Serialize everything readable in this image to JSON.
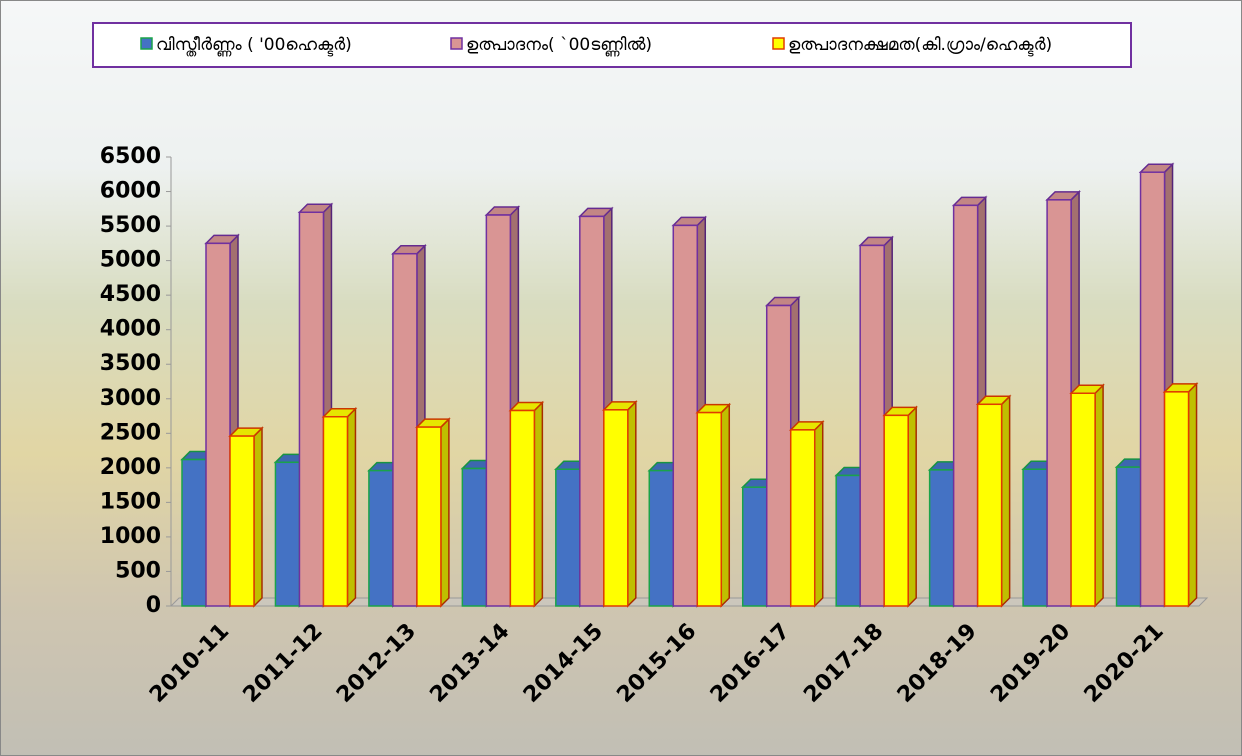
{
  "chart_data": {
    "type": "bar3d",
    "categories": [
      "2010-11",
      "2011-12",
      "2012-13",
      "2013-14",
      "2014-15",
      "2015-16",
      "2016-17",
      "2017-18",
      "2018-19",
      "2019-20",
      "2020-21"
    ],
    "series": [
      {
        "name": "വിസ്തീർണ്ണം ( '00ഹെക്ടർ)",
        "color": "#4472c4",
        "edge": "#1aa34a",
        "values": [
          2120,
          2080,
          1960,
          1990,
          1980,
          1960,
          1720,
          1890,
          1970,
          1980,
          2010
        ]
      },
      {
        "name": "ഉത്പാദനം( `00ടണ്ണിൽ)",
        "color": "#d99594",
        "edge": "#7030a0",
        "values": [
          5250,
          5700,
          5100,
          5660,
          5640,
          5510,
          4350,
          5220,
          5800,
          5880,
          6280
        ]
      },
      {
        "name": "ഉത്പാദനക്ഷമത(കി.ഗ്രാം/ഹെക്ടർ)",
        "color": "#ffff00",
        "edge": "#e03c00",
        "values": [
          2460,
          2740,
          2590,
          2830,
          2840,
          2800,
          2550,
          2760,
          2920,
          3080,
          3100
        ]
      }
    ],
    "ylim": [
      0,
      6500
    ],
    "yticks": [
      0,
      500,
      1000,
      1500,
      2000,
      2500,
      3000,
      3500,
      4000,
      4500,
      5000,
      5500,
      6000,
      6500
    ],
    "legend": "top"
  }
}
